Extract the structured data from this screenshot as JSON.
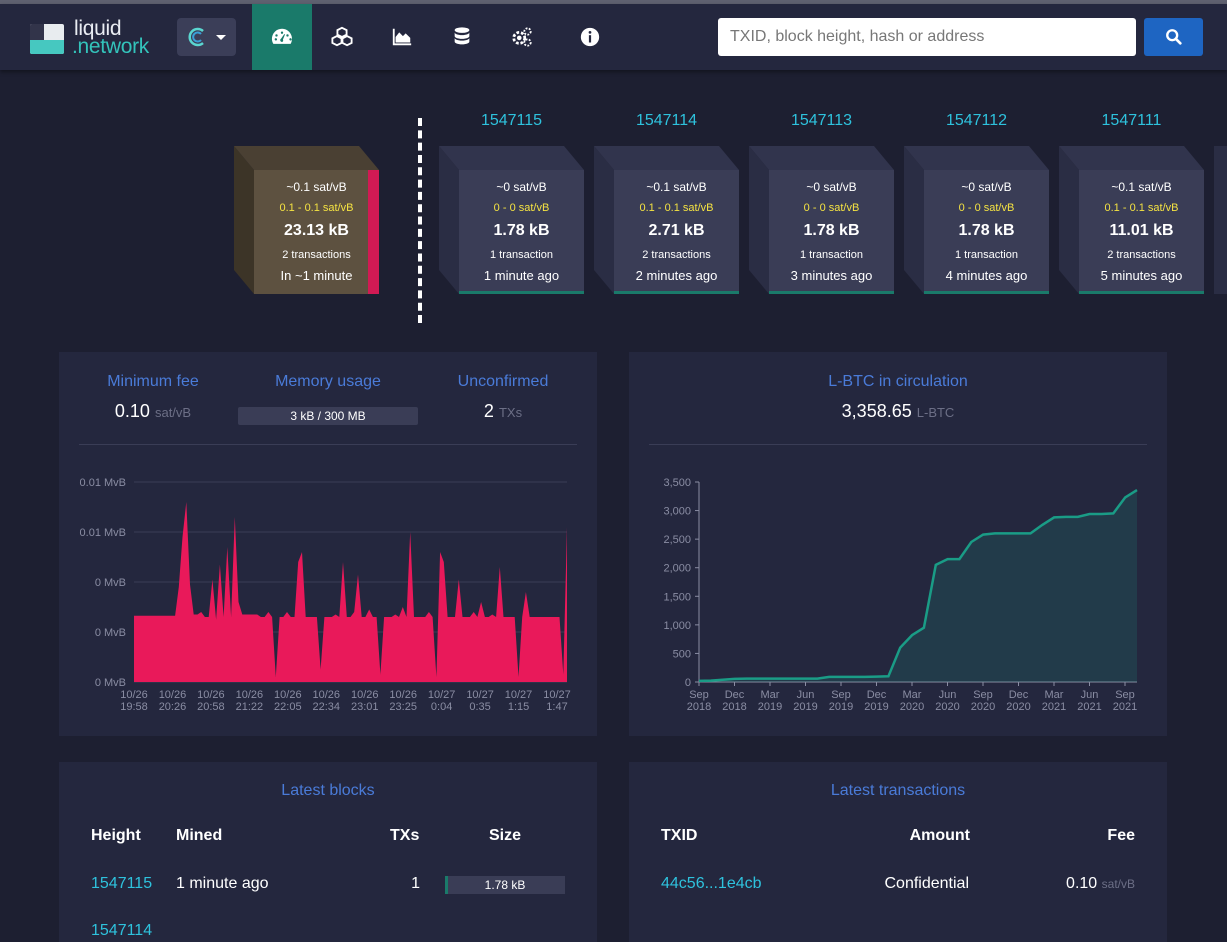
{
  "brand": {
    "line1": "liquid",
    "line2": ".network"
  },
  "nav": {
    "items": [
      {
        "name": "dashboard",
        "icon": "tachometer-icon"
      },
      {
        "name": "blocks",
        "icon": "cubes-icon"
      },
      {
        "name": "graphs",
        "icon": "area-chart-icon"
      },
      {
        "name": "assets",
        "icon": "database-icon"
      },
      {
        "name": "tools",
        "icon": "cogs-icon"
      },
      {
        "name": "about",
        "icon": "info-circle-icon"
      }
    ]
  },
  "search": {
    "placeholder": "TXID, block height, hash or address"
  },
  "mempool_block": {
    "median_fee": "~0.1 sat/vB",
    "fee_range": "0.1 - 0.1 sat/vB",
    "size": "23.13 kB",
    "tx_count": "2 transactions",
    "eta": "In ~1 minute"
  },
  "blocks": [
    {
      "height": "1547115",
      "median_fee": "~0 sat/vB",
      "fee_range": "0 - 0 sat/vB",
      "size": "1.78 kB",
      "tx_count": "1 transaction",
      "age": "1 minute ago"
    },
    {
      "height": "1547114",
      "median_fee": "~0.1 sat/vB",
      "fee_range": "0.1 - 0.1 sat/vB",
      "size": "2.71 kB",
      "tx_count": "2 transactions",
      "age": "2 minutes ago"
    },
    {
      "height": "1547113",
      "median_fee": "~0 sat/vB",
      "fee_range": "0 - 0 sat/vB",
      "size": "1.78 kB",
      "tx_count": "1 transaction",
      "age": "3 minutes ago"
    },
    {
      "height": "1547112",
      "median_fee": "~0 sat/vB",
      "fee_range": "0 - 0 sat/vB",
      "size": "1.78 kB",
      "tx_count": "1 transaction",
      "age": "4 minutes ago"
    },
    {
      "height": "1547111",
      "median_fee": "~0.1 sat/vB",
      "fee_range": "0.1 - 0.1 sat/vB",
      "size": "11.01 kB",
      "tx_count": "2 transactions",
      "age": "5 minutes ago"
    }
  ],
  "stats": {
    "min_fee_label": "Minimum fee",
    "min_fee_value": "0.10",
    "min_fee_unit": "sat/vB",
    "memory_label": "Memory usage",
    "memory_value": "3 kB / 300 MB",
    "unconfirmed_label": "Unconfirmed",
    "unconfirmed_value": "2",
    "unconfirmed_unit": "TXs",
    "circ_label": "L-BTC in circulation",
    "circ_value": "3,358.65",
    "circ_unit": "L-BTC"
  },
  "chart_data": [
    {
      "type": "area",
      "title": "",
      "y_tick_labels": [
        "0.01 MvB",
        "0.01 MvB",
        "0 MvB",
        "0 MvB",
        "0 MvB"
      ],
      "x_tick_labels": [
        "10/26\n19:58",
        "10/26\n20:26",
        "10/26\n20:58",
        "10/26\n21:22",
        "10/26\n22:05",
        "10/26\n22:34",
        "10/26\n23:01",
        "10/26\n23:25",
        "10/27\n0:04",
        "10/27\n0:35",
        "10/27\n1:15",
        "10/27\n1:47"
      ],
      "ylim": [
        0,
        0.008
      ],
      "values": [
        0.00265,
        0.00265,
        0.00265,
        0.00265,
        0.00265,
        0.00265,
        0.00265,
        0.00265,
        0.00265,
        0.00265,
        0.00265,
        0.00265,
        0.0038,
        0.0058,
        0.0072,
        0.0039,
        0.0027,
        0.0027,
        0.0028,
        0.0026,
        0.0026,
        0.0041,
        0.0025,
        0.0047,
        0.0026,
        0.0054,
        0.0026,
        0.0066,
        0.0032,
        0.0027,
        0.0027,
        0.0027,
        0.0027,
        0.0027,
        0.0026,
        0.0026,
        0.0028,
        0.0026,
        0.0002,
        0.0026,
        0.0026,
        0.0028,
        0.0026,
        0.0026,
        0.0048,
        0.0052,
        0.0026,
        0.0026,
        0.0026,
        0.0026,
        0.0005,
        0.0026,
        0.0026,
        0.0026,
        0.0027,
        0.0026,
        0.0048,
        0.0026,
        0.0026,
        0.0028,
        0.0043,
        0.0026,
        0.0026,
        0.0029,
        0.0026,
        0.0026,
        0.0003,
        0.0026,
        0.0026,
        0.0026,
        0.0027,
        0.0026,
        0.003,
        0.0026,
        0.006,
        0.0026,
        0.0026,
        0.0026,
        0.0026,
        0.0028,
        0.0026,
        0.0002,
        0.0052,
        0.0048,
        0.0026,
        0.0026,
        0.0026,
        0.0041,
        0.0026,
        0.0026,
        0.0026,
        0.0028,
        0.0026,
        0.0032,
        0.0026,
        0.0026,
        0.0027,
        0.0026,
        0.0046,
        0.0026,
        0.0026,
        0.0026,
        0.0026,
        0.0002,
        0.0026,
        0.0036,
        0.0026,
        0.0026,
        0.0026,
        0.0026,
        0.0026,
        0.0026,
        0.0026,
        0.0026,
        0.0026,
        0.0003,
        0.0062
      ],
      "color": "#e9195a"
    },
    {
      "type": "area",
      "title": "",
      "ylim": [
        0,
        3500
      ],
      "y_ticks": [
        0,
        500,
        1000,
        1500,
        2000,
        2500,
        3000,
        3500
      ],
      "y_tick_labels": [
        "0",
        "500",
        "1,000",
        "1,500",
        "2,000",
        "2,500",
        "3,000",
        "3,500"
      ],
      "x_tick_labels": [
        "Sep\n2018",
        "Dec\n2018",
        "Mar\n2019",
        "Jun\n2019",
        "Sep\n2019",
        "Dec\n2019",
        "Mar\n2020",
        "Jun\n2020",
        "Sep\n2020",
        "Dec\n2020",
        "Mar\n2021",
        "Jun\n2021",
        "Sep\n2021"
      ],
      "x": [
        "2018-09",
        "2018-10",
        "2018-11",
        "2018-12",
        "2019-01",
        "2019-02",
        "2019-03",
        "2019-04",
        "2019-05",
        "2019-06",
        "2019-07",
        "2019-08",
        "2019-09",
        "2019-10",
        "2019-11",
        "2019-12",
        "2020-01",
        "2020-02",
        "2020-03",
        "2020-04",
        "2020-05",
        "2020-06",
        "2020-07",
        "2020-08",
        "2020-09",
        "2020-10",
        "2020-11",
        "2020-12",
        "2021-01",
        "2021-02",
        "2021-03",
        "2021-04",
        "2021-05",
        "2021-06",
        "2021-07",
        "2021-08",
        "2021-09",
        "2021-10"
      ],
      "values": [
        20,
        25,
        40,
        55,
        60,
        60,
        60,
        60,
        60,
        60,
        60,
        90,
        90,
        90,
        90,
        95,
        100,
        600,
        820,
        950,
        2050,
        2150,
        2150,
        2450,
        2580,
        2600,
        2600,
        2600,
        2600,
        2750,
        2880,
        2890,
        2890,
        2940,
        2940,
        2950,
        3230,
        3358
      ],
      "color": "#1a9c86"
    }
  ],
  "latest_blocks": {
    "title": "Latest blocks",
    "headers": [
      "Height",
      "Mined",
      "TXs",
      "Size"
    ],
    "rows": [
      {
        "height": "1547115",
        "mined": "1 minute ago",
        "txs": "1",
        "size": "1.78 kB"
      }
    ]
  },
  "latest_transactions": {
    "title": "Latest transactions",
    "headers": [
      "TXID",
      "Amount",
      "Fee"
    ],
    "rows": [
      {
        "txid": "44c56...1e4cb",
        "amount": "Confidential",
        "fee": "0.10",
        "fee_unit": "sat/vB"
      }
    ]
  }
}
